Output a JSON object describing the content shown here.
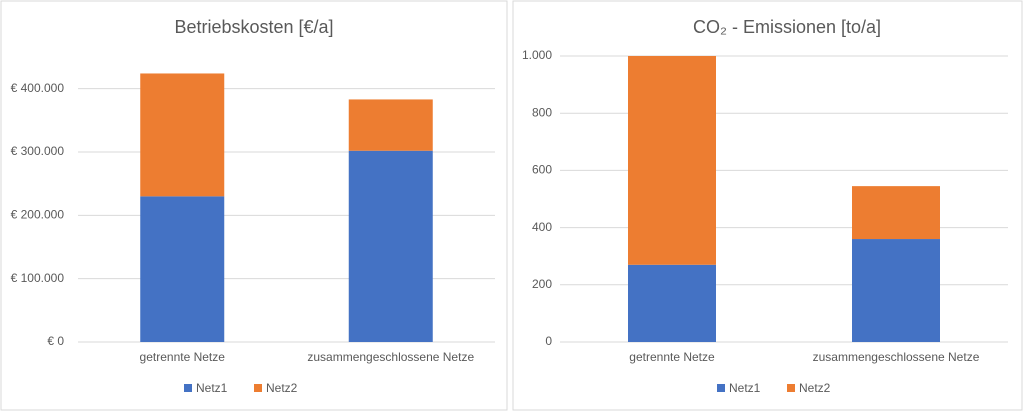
{
  "chart_data": [
    {
      "type": "stacked_bar",
      "title": "Betriebskosten [€/a]",
      "categories": [
        "getrennte Netze",
        "zusammengeschlossene Netze"
      ],
      "series": [
        {
          "name": "Netz1",
          "color": "#4472c4",
          "values": [
            230000,
            302000
          ]
        },
        {
          "name": "Netz2",
          "color": "#ed7d31",
          "values": [
            194000,
            81000
          ]
        }
      ],
      "ylim": [
        0,
        450000
      ],
      "yticks": [
        {
          "value": 0,
          "label": "€ 0"
        },
        {
          "value": 100000,
          "label": "€ 100.000"
        },
        {
          "value": 200000,
          "label": "€ 200.000"
        },
        {
          "value": 300000,
          "label": "€ 300.000"
        },
        {
          "value": 400000,
          "label": "€ 400.000"
        }
      ],
      "grid": true,
      "legend": "bottom"
    },
    {
      "type": "stacked_bar",
      "title": "CO₂ - Emissionen [to/a]",
      "categories": [
        "getrennte Netze",
        "zusammengeschlossene Netze"
      ],
      "series": [
        {
          "name": "Netz1",
          "color": "#4472c4",
          "values": [
            270,
            360
          ]
        },
        {
          "name": "Netz2",
          "color": "#ed7d31",
          "values": [
            730,
            185
          ]
        }
      ],
      "ylim": [
        0,
        1000
      ],
      "yticks": [
        0,
        200,
        400,
        600,
        800,
        {
          "value": 1000,
          "label": "1.000"
        }
      ],
      "grid": true,
      "legend": "bottom"
    }
  ]
}
